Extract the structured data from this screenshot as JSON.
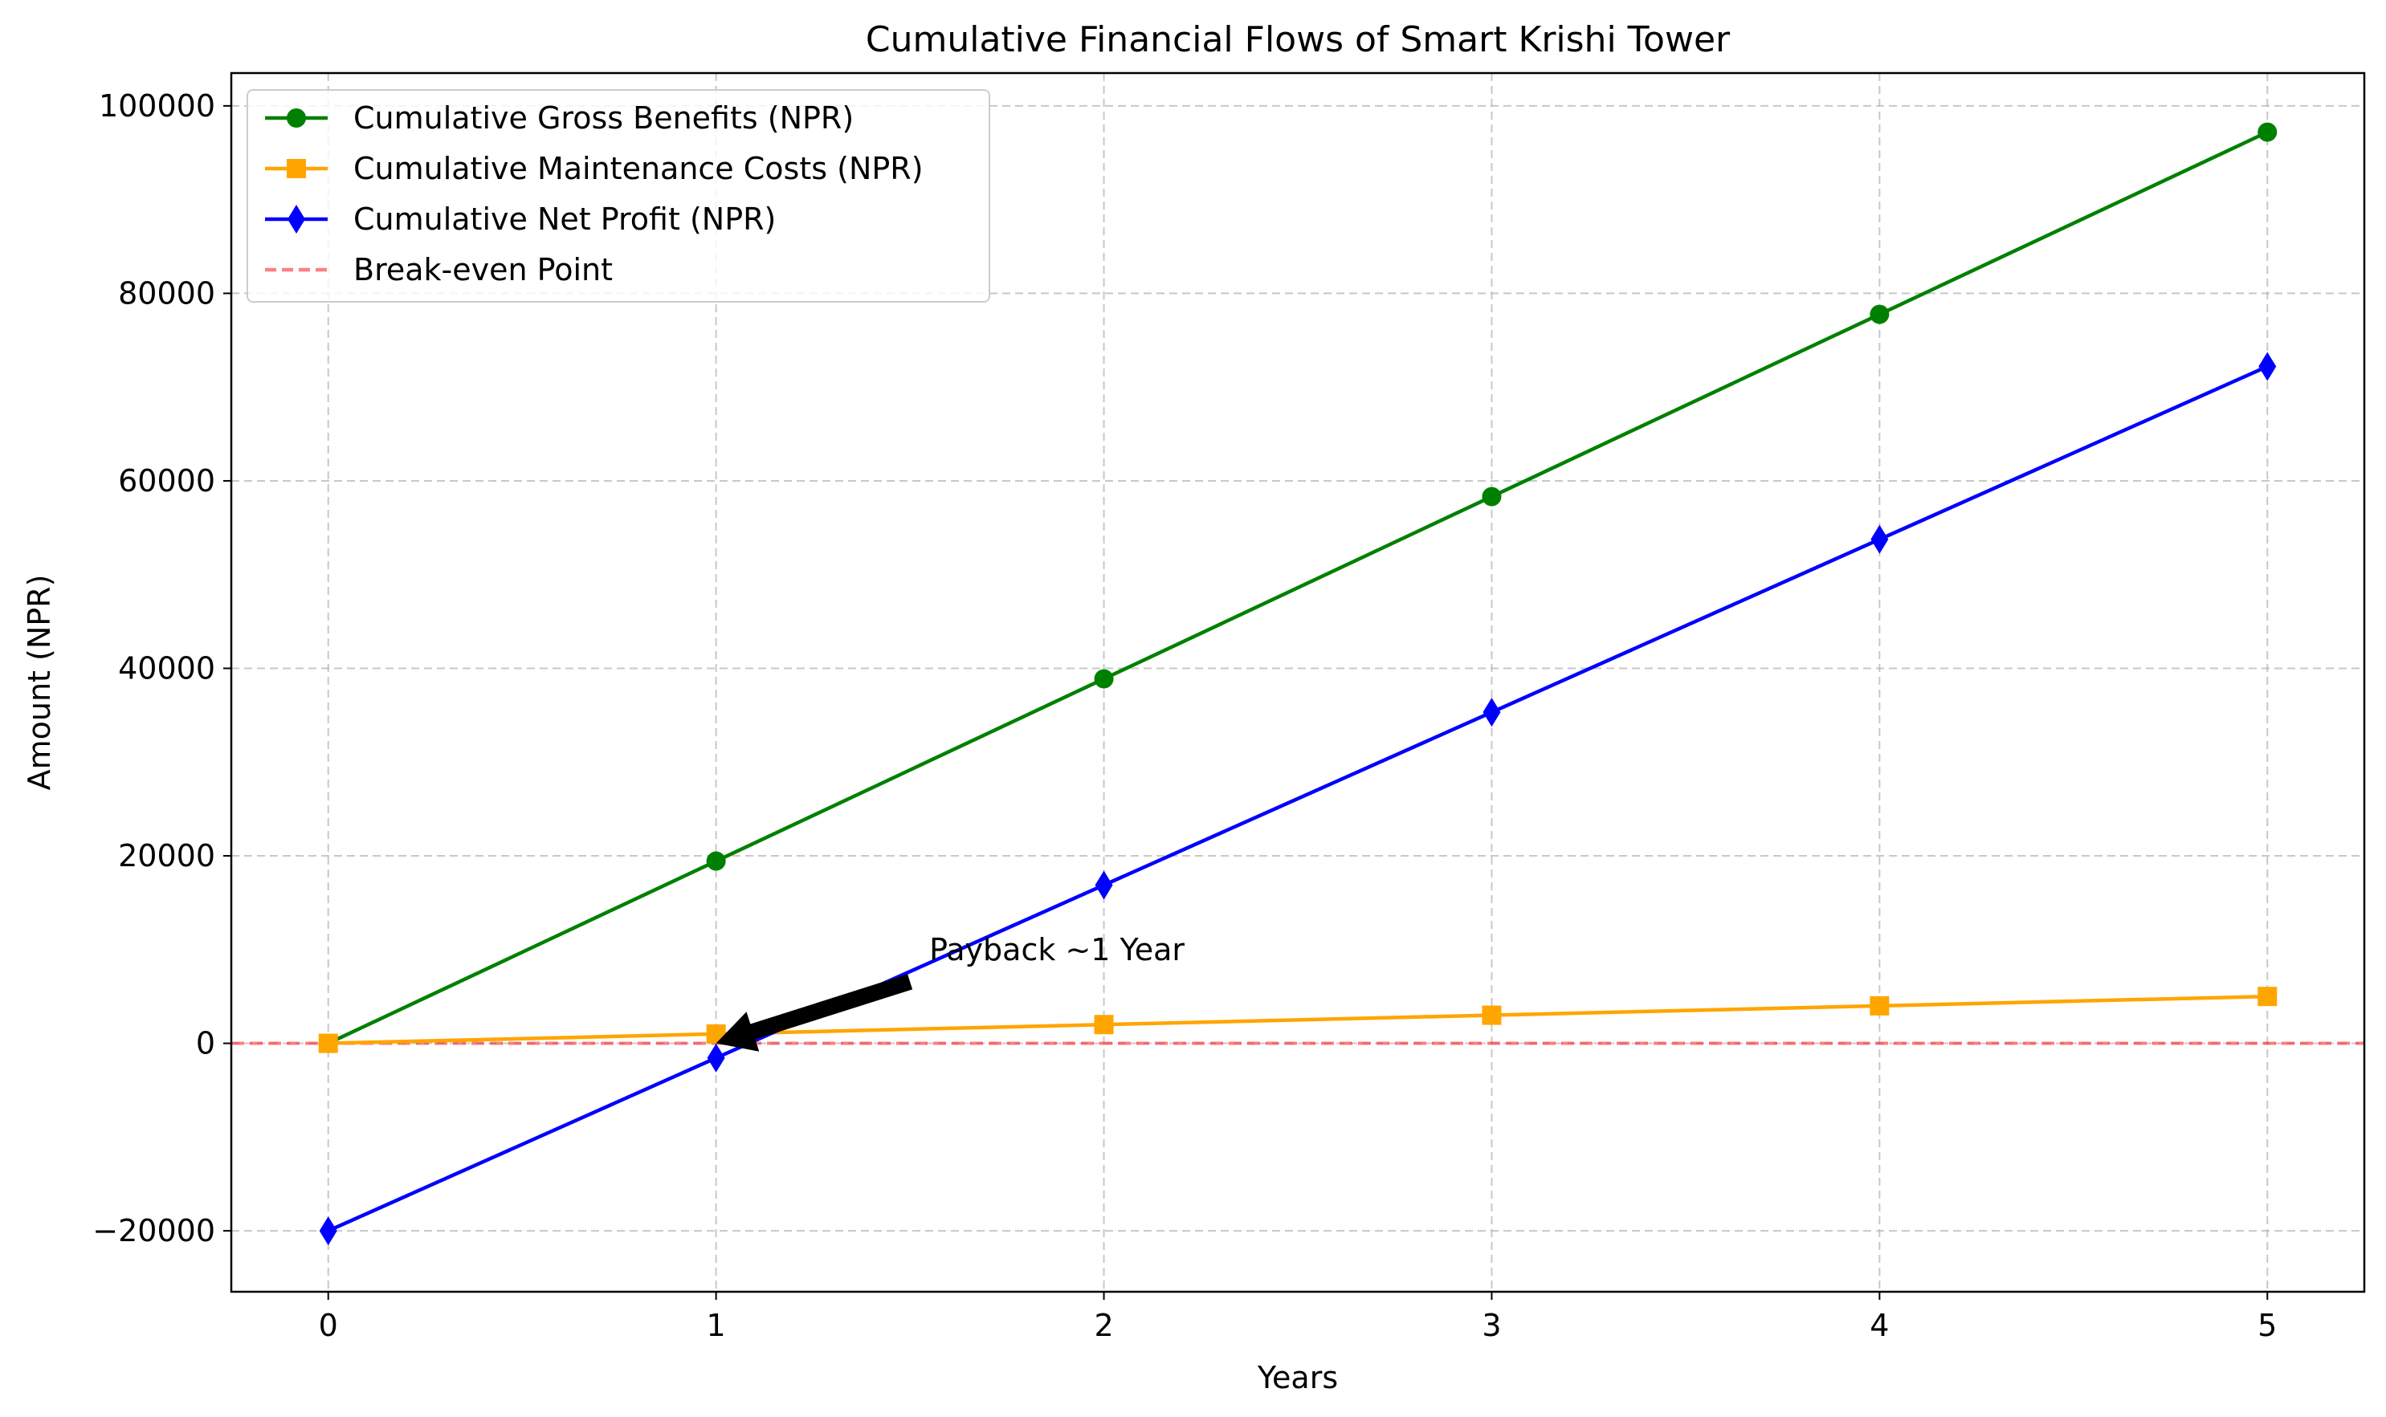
{
  "chart_data": {
    "type": "line",
    "title": "Cumulative Financial Flows of Smart Krishi Tower",
    "xlabel": "Years",
    "ylabel": "Amount (NPR)",
    "x": [
      0,
      1,
      2,
      3,
      4,
      5
    ],
    "xlim": [
      -0.25,
      5.25
    ],
    "ylim": [
      -26500,
      103500
    ],
    "xticks": [
      0,
      1,
      2,
      3,
      4,
      5
    ],
    "yticks": [
      -20000,
      0,
      20000,
      40000,
      60000,
      80000,
      100000
    ],
    "ytick_labels": [
      "−20000",
      "0",
      "20000",
      "40000",
      "60000",
      "80000",
      "100000"
    ],
    "grid": true,
    "legend_position": "top-left",
    "series": [
      {
        "name": "Cumulative Gross Benefits (NPR)",
        "color": "#008000",
        "marker": "circle",
        "values": [
          0,
          19440,
          38880,
          58320,
          77760,
          97200
        ]
      },
      {
        "name": "Cumulative Maintenance Costs (NPR)",
        "color": "#FFA500",
        "marker": "square",
        "values": [
          0,
          1000,
          2000,
          3000,
          4000,
          5000
        ]
      },
      {
        "name": "Cumulative Net Profit (NPR)",
        "color": "#0000FF",
        "marker": "thin-diamond",
        "values": [
          -20000,
          -1560,
          16880,
          35320,
          53760,
          72200
        ]
      }
    ],
    "reference_lines": [
      {
        "name": "Break-even Point",
        "y": 0,
        "color": "#FF0000",
        "alpha": 0.5,
        "style": "dashed"
      }
    ],
    "annotations": [
      {
        "text": "Payback ~1 Year",
        "point": [
          1,
          0
        ],
        "text_at": [
          1.5,
          10000
        ]
      }
    ]
  }
}
